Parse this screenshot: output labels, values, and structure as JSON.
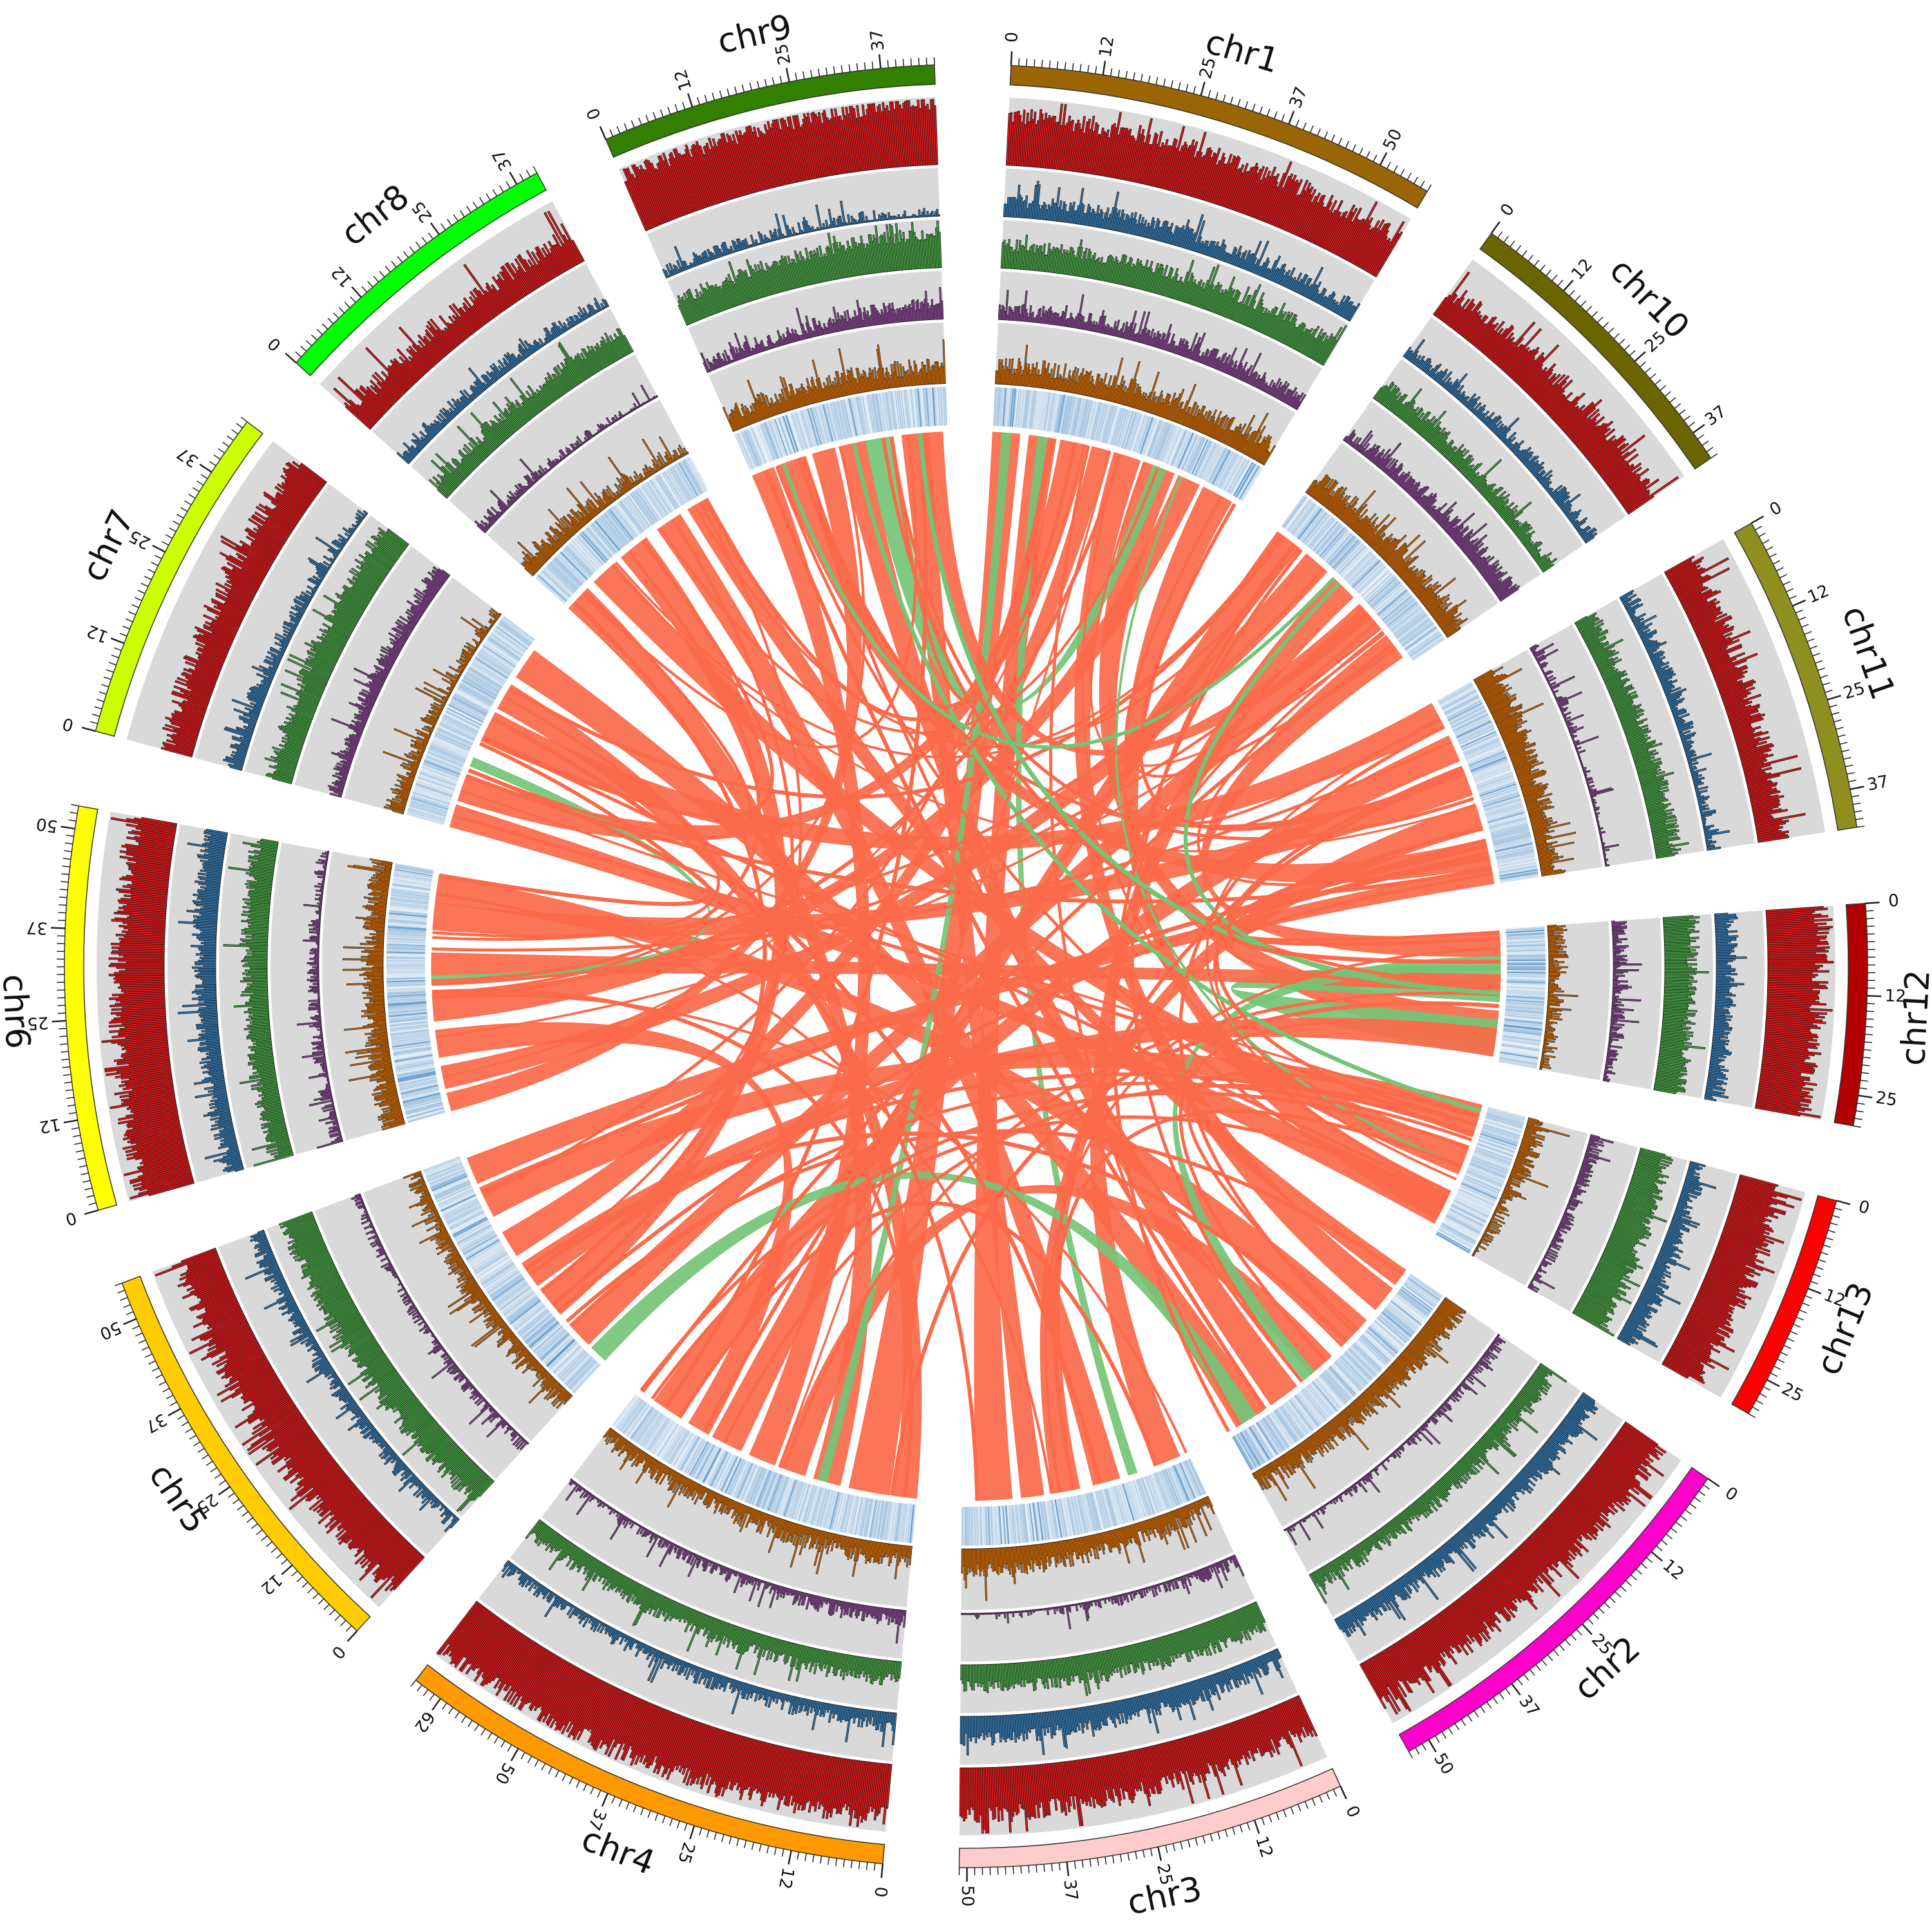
{
  "chart_data": {
    "type": "circos",
    "chromosomes": [
      {
        "name": "chr1",
        "size": 57,
        "color": "#9a6505",
        "ticks": [
          0,
          12,
          25,
          37,
          50
        ]
      },
      {
        "name": "chr10",
        "size": 41,
        "color": "#6b6500",
        "ticks": [
          0,
          12,
          25,
          37
        ]
      },
      {
        "name": "chr11",
        "size": 42,
        "color": "#8f8f20",
        "ticks": [
          0,
          12,
          25,
          37
        ]
      },
      {
        "name": "chr12",
        "size": 29,
        "color": "#b20000",
        "ticks": [
          0,
          12,
          25
        ]
      },
      {
        "name": "chr13",
        "size": 30,
        "color": "#ff0000",
        "ticks": [
          0,
          12,
          25
        ]
      },
      {
        "name": "chr2",
        "size": 53,
        "color": "#ff00cc",
        "ticks": [
          0,
          12,
          25,
          37,
          50
        ]
      },
      {
        "name": "chr3",
        "size": 51,
        "color": "#ffcccc",
        "ticks": [
          0,
          12,
          25,
          37,
          50
        ]
      },
      {
        "name": "chr4",
        "size": 66,
        "color": "#ff9900",
        "ticks": [
          0,
          12,
          25,
          37,
          50,
          62
        ]
      },
      {
        "name": "chr5",
        "size": 55,
        "color": "#ffcc00",
        "ticks": [
          0,
          12,
          25,
          37,
          50
        ]
      },
      {
        "name": "chr6",
        "size": 53,
        "color": "#ffff00",
        "ticks": [
          0,
          12,
          25,
          37,
          50
        ]
      },
      {
        "name": "chr7",
        "size": 45,
        "color": "#ccff00",
        "ticks": [
          0,
          12,
          25,
          37
        ]
      },
      {
        "name": "chr8",
        "size": 40,
        "color": "#00ff00",
        "ticks": [
          0,
          12,
          25,
          37
        ]
      },
      {
        "name": "chr9",
        "size": 44,
        "color": "#338000",
        "ticks": [
          0,
          12,
          25,
          37
        ]
      }
    ],
    "tracks": [
      {
        "color": "#e41a1c",
        "level": 0.65
      },
      {
        "color": "#377eb8",
        "level": 0.25
      },
      {
        "color": "#4daf4a",
        "level": 0.45
      },
      {
        "color": "#984ea3",
        "level": 0.18
      },
      {
        "color": "#ff7f00",
        "level": 0.3
      }
    ],
    "heatmap_color": "#2f78b8",
    "link_colors": {
      "synteny": "#fb6a4a",
      "inverted": "#74c476"
    },
    "links": [
      {
        "a": [
          "chr1",
          0,
          6
        ],
        "b": [
          "chr4",
          6,
          15
        ],
        "type": "synteny"
      },
      {
        "a": [
          "chr1",
          8,
          14
        ],
        "b": [
          "chr3",
          40,
          48
        ],
        "type": "synteny"
      },
      {
        "a": [
          "chr1",
          15,
          21
        ],
        "b": [
          "chr7",
          6,
          12
        ],
        "type": "synteny"
      },
      {
        "a": [
          "chr1",
          22,
          26
        ],
        "b": [
          "chr5",
          30,
          36
        ],
        "type": "synteny"
      },
      {
        "a": [
          "chr1",
          27,
          33
        ],
        "b": [
          "chr2",
          5,
          11
        ],
        "type": "synteny"
      },
      {
        "a": [
          "chr1",
          34,
          41
        ],
        "b": [
          "chr12",
          18,
          26
        ],
        "type": "synteny"
      },
      {
        "a": [
          "chr1",
          42,
          47
        ],
        "b": [
          "chr6",
          20,
          26
        ],
        "type": "synteny"
      },
      {
        "a": [
          "chr1",
          48,
          55
        ],
        "b": [
          "chr13",
          20,
          27
        ],
        "type": "synteny"
      },
      {
        "a": [
          "chr1",
          10,
          12
        ],
        "b": [
          "chr3",
          12,
          14
        ],
        "type": "inverted"
      },
      {
        "a": [
          "chr10",
          0,
          6
        ],
        "b": [
          "chr4",
          40,
          47
        ],
        "type": "synteny"
      },
      {
        "a": [
          "chr10",
          8,
          14
        ],
        "b": [
          "chr6",
          5,
          10
        ],
        "type": "synteny"
      },
      {
        "a": [
          "chr10",
          16,
          22
        ],
        "b": [
          "chr3",
          2,
          8
        ],
        "type": "synteny"
      },
      {
        "a": [
          "chr10",
          25,
          31
        ],
        "b": [
          "chr5",
          5,
          11
        ],
        "type": "synteny"
      },
      {
        "a": [
          "chr10",
          33,
          39
        ],
        "b": [
          "chr12",
          1,
          6
        ],
        "type": "synteny"
      },
      {
        "a": [
          "chr11",
          0,
          6
        ],
        "b": [
          "chr7",
          20,
          27
        ],
        "type": "synteny"
      },
      {
        "a": [
          "chr11",
          8,
          14
        ],
        "b": [
          "chr4",
          55,
          62
        ],
        "type": "synteny"
      },
      {
        "a": [
          "chr11",
          16,
          22
        ],
        "b": [
          "chr6",
          40,
          46
        ],
        "type": "synteny"
      },
      {
        "a": [
          "chr11",
          24,
          30
        ],
        "b": [
          "chr3",
          25,
          31
        ],
        "type": "synteny"
      },
      {
        "a": [
          "chr11",
          32,
          38
        ],
        "b": [
          "chr9",
          6,
          12
        ],
        "type": "synteny"
      },
      {
        "a": [
          "chr12",
          8,
          16
        ],
        "b": [
          "chr12",
          20,
          28
        ],
        "type": "inverted"
      },
      {
        "a": [
          "chr12",
          10,
          14
        ],
        "b": [
          "chr6",
          30,
          35
        ],
        "type": "synteny"
      },
      {
        "a": [
          "chr13",
          0,
          7
        ],
        "b": [
          "chr5",
          40,
          47
        ],
        "type": "synteny"
      },
      {
        "a": [
          "chr13",
          10,
          16
        ],
        "b": [
          "chr8",
          8,
          14
        ],
        "type": "synteny"
      },
      {
        "a": [
          "chr2",
          14,
          22
        ],
        "b": [
          "chr6",
          46,
          52
        ],
        "type": "synteny"
      },
      {
        "a": [
          "chr2",
          25,
          31
        ],
        "b": [
          "chr4",
          25,
          31
        ],
        "type": "synteny"
      },
      {
        "a": [
          "chr2",
          35,
          42
        ],
        "b": [
          "chr9",
          20,
          26
        ],
        "type": "synteny"
      },
      {
        "a": [
          "chr2",
          44,
          51
        ],
        "b": [
          "chr7",
          36,
          43
        ],
        "type": "synteny"
      },
      {
        "a": [
          "chr2",
          30,
          33
        ],
        "b": [
          "chr12",
          6,
          9
        ],
        "type": "inverted"
      },
      {
        "a": [
          "chr3",
          16,
          22
        ],
        "b": [
          "chr8",
          26,
          32
        ],
        "type": "synteny"
      },
      {
        "a": [
          "chr3",
          33,
          38
        ],
        "b": [
          "chr9",
          34,
          40
        ],
        "type": "synteny"
      },
      {
        "a": [
          "chr4",
          0,
          5
        ],
        "b": [
          "chr7",
          28,
          34
        ],
        "type": "synteny"
      },
      {
        "a": [
          "chr4",
          17,
          23
        ],
        "b": [
          "chr8",
          0,
          6
        ],
        "type": "synteny"
      },
      {
        "a": [
          "chr4",
          32,
          38
        ],
        "b": [
          "chr9",
          0,
          5
        ],
        "type": "synteny"
      },
      {
        "a": [
          "chr4",
          48,
          53
        ],
        "b": [
          "chr6",
          12,
          18
        ],
        "type": "synteny"
      },
      {
        "a": [
          "chr4",
          20,
          22
        ],
        "b": [
          "chr1",
          2,
          4
        ],
        "type": "inverted"
      },
      {
        "a": [
          "chr5",
          14,
          21
        ],
        "b": [
          "chr8",
          16,
          23
        ],
        "type": "synteny"
      },
      {
        "a": [
          "chr5",
          22,
          28
        ],
        "b": [
          "chr12",
          22,
          28
        ],
        "type": "synteny"
      },
      {
        "a": [
          "chr5",
          48,
          54
        ],
        "b": [
          "chr11",
          38,
          42
        ],
        "type": "synteny"
      },
      {
        "a": [
          "chr6",
          0,
          4
        ],
        "b": [
          "chr9",
          14,
          19
        ],
        "type": "synteny"
      },
      {
        "a": [
          "chr6",
          28,
          30
        ],
        "b": [
          "chr7",
          14,
          16
        ],
        "type": "inverted"
      },
      {
        "a": [
          "chr7",
          0,
          5
        ],
        "b": [
          "chr13",
          22,
          28
        ],
        "type": "synteny"
      },
      {
        "a": [
          "chr8",
          34,
          39
        ],
        "b": [
          "chr2",
          0,
          4
        ],
        "type": "synteny"
      },
      {
        "a": [
          "chr9",
          26,
          32
        ],
        "b": [
          "chr1",
          36,
          39
        ],
        "type": "inverted"
      },
      {
        "a": [
          "chr9",
          38,
          43
        ],
        "b": [
          "chr10",
          24,
          28
        ],
        "type": "synteny"
      },
      {
        "a": [
          "chr5",
          0,
          4
        ],
        "b": [
          "chr2",
          46,
          50
        ],
        "type": "inverted"
      }
    ]
  }
}
